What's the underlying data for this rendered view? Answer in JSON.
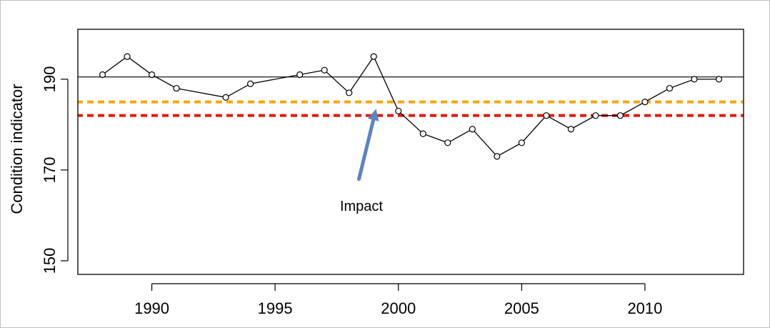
{
  "chart_data": {
    "type": "line",
    "title": "",
    "xlabel": "",
    "ylabel": "Condition indicator",
    "xlim": [
      1987,
      2014
    ],
    "ylim": [
      147,
      201
    ],
    "x_ticks": [
      1990,
      1995,
      2000,
      2005,
      2010
    ],
    "y_ticks": [
      150,
      170,
      190
    ],
    "grid": false,
    "legend": "none",
    "series": [
      {
        "x": [
          1988,
          1989,
          1990,
          1991,
          1993,
          1994,
          1996,
          1997,
          1998,
          1999,
          2000,
          2001,
          2002,
          2003,
          2004,
          2005,
          2006,
          2007,
          2008,
          2009,
          2010,
          2011,
          2012,
          2013
        ],
        "y": [
          191,
          195,
          191,
          188,
          186,
          189,
          191,
          192,
          187,
          195,
          183,
          178,
          176,
          179,
          173,
          176,
          182,
          179,
          182,
          182,
          185,
          188,
          190,
          190
        ],
        "color": "#000000"
      }
    ],
    "reference_lines": [
      {
        "y": 190.5,
        "style": "solid",
        "color": "#000000"
      },
      {
        "y": 185,
        "style": "dashed",
        "color": "#ffa500"
      },
      {
        "y": 182,
        "style": "dashed",
        "color": "#e8160c"
      }
    ],
    "annotations": [
      {
        "text": "Impact",
        "arrow_color": "#5b84c4",
        "arrow_tip": [
          1999.05,
          182.5
        ],
        "arrow_tail": [
          1998.4,
          168
        ],
        "label_at": [
          1998.5,
          161
        ]
      }
    ]
  }
}
